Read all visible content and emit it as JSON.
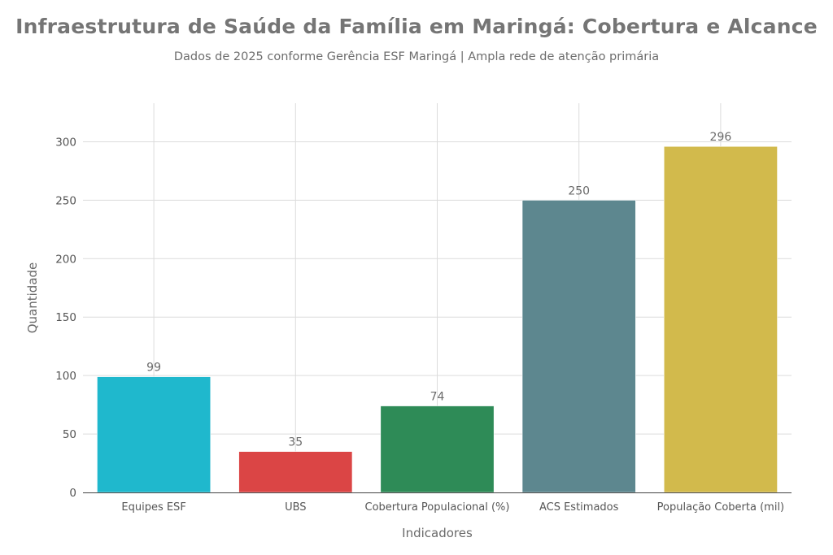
{
  "header": {
    "title": "Infraestrutura de Saúde da Família em Maringá: Cobertura e Alcance",
    "subtitle": "Dados de 2025 conforme Gerência ESF Maringá | Ampla rede de atenção primária"
  },
  "chart_data": {
    "type": "bar",
    "title": "Infraestrutura de Saúde da Família em Maringá: Cobertura e Alcance",
    "subtitle": "Dados de 2025 conforme Gerência ESF Maringá | Ampla rede de atenção primária",
    "xlabel": "Indicadores",
    "ylabel": "Quantidade",
    "categories": [
      "Equipes ESF",
      "UBS",
      "Cobertura Populacional (%)",
      "ACS Estimados",
      "População Coberta (mil)"
    ],
    "values": [
      99,
      35,
      74,
      250,
      296
    ],
    "data_labels": [
      "99",
      "35",
      "74",
      "250",
      "296"
    ],
    "colors": [
      "#1fb8cd",
      "#db4545",
      "#2e8b57",
      "#5d878f",
      "#d2ba4c"
    ],
    "ylim": [
      0,
      333
    ],
    "yticks": [
      0,
      50,
      100,
      150,
      200,
      250,
      300
    ],
    "grid": true,
    "legend": "none"
  }
}
